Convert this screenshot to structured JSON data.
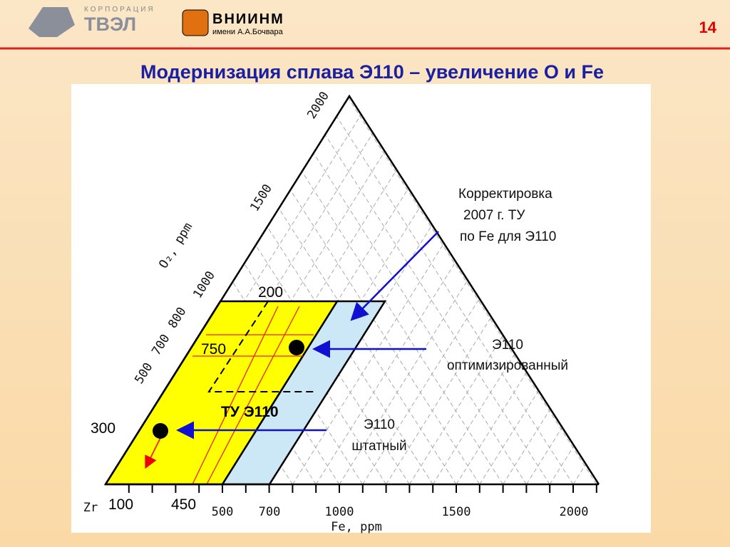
{
  "header": {
    "company_small": "КОРПОРАЦИЯ",
    "company": "ТВЭЛ",
    "institute": "ВНИИНМ",
    "institute_sub": "имени А.А.Бочвара",
    "page_number": "14"
  },
  "title": "Модернизация сплава Э110 – увеличение О и Fe",
  "diagram": {
    "o2_axis": {
      "label": "O₂, ppm",
      "ticks": [
        "500",
        "700",
        "800",
        "1000",
        "1500",
        "2000"
      ]
    },
    "fe_axis": {
      "label": "Fe, ppm",
      "origin": "Zr",
      "ticks": [
        "500",
        "700",
        "1000",
        "1500",
        "2000"
      ]
    },
    "region_label": "ТУ Э110",
    "markers": [
      "200",
      "750",
      "300",
      "100",
      "450"
    ]
  },
  "annotations": [
    {
      "lines": [
        "Корректировка",
        "2007 г. ТУ",
        "по Fe для Э110"
      ]
    },
    {
      "lines": [
        "Э110",
        "оптимизированный"
      ]
    },
    {
      "lines": [
        "Э110",
        "штатный"
      ]
    }
  ]
}
